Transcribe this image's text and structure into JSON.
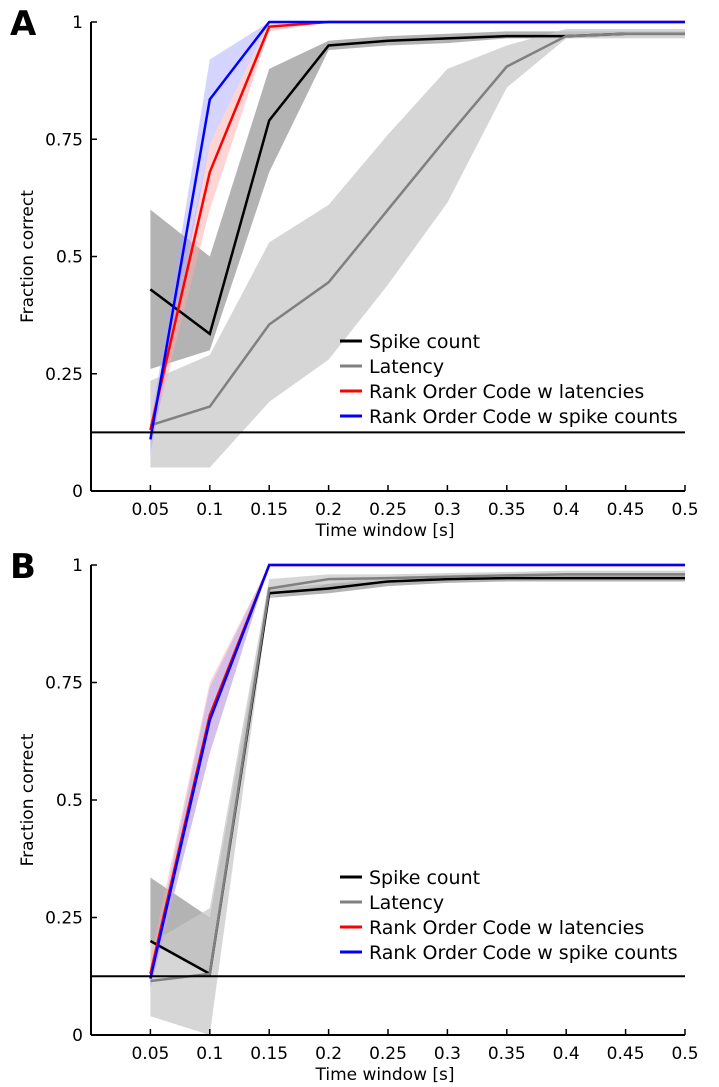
{
  "chart_data": [
    {
      "panel_label": "A",
      "type": "line",
      "xlabel": "Time window [s]",
      "ylabel": "Fraction correct",
      "x": [
        0.05,
        0.1,
        0.15,
        0.2,
        0.25,
        0.3,
        0.35,
        0.4,
        0.45,
        0.5
      ],
      "x_tick_labels": [
        "0.05",
        "0.1",
        "0.15",
        "0.2",
        "0.25",
        "0.3",
        "0.35",
        "0.4",
        "0.45",
        "0.5"
      ],
      "xlim": [
        0,
        0.5
      ],
      "ylim": [
        0,
        1
      ],
      "y_ticks": [
        0,
        0.25,
        0.5,
        0.75,
        1
      ],
      "y_tick_labels": [
        "0",
        "0.25",
        "0.5",
        "0.75",
        "1"
      ],
      "grid": false,
      "legend_position": "lower-right",
      "chance_level": 0.125,
      "series": [
        {
          "name": "Spike count",
          "color": "#000000",
          "band_color": "#808080",
          "band_opacity": 0.6,
          "values": [
            0.43,
            0.335,
            0.79,
            0.95,
            0.96,
            0.965,
            0.97,
            0.97,
            0.975,
            0.975
          ],
          "lower": [
            0.26,
            0.3,
            0.68,
            0.94,
            0.95,
            0.955,
            0.965,
            0.965,
            0.97,
            0.97
          ],
          "upper": [
            0.6,
            0.5,
            0.9,
            0.96,
            0.97,
            0.975,
            0.98,
            0.98,
            0.98,
            0.98
          ]
        },
        {
          "name": "Latency",
          "color": "#808080",
          "band_color": "#c8c8c8",
          "band_opacity": 0.75,
          "values": [
            0.14,
            0.18,
            0.355,
            0.445,
            0.6,
            0.755,
            0.905,
            0.97,
            0.975,
            0.975
          ],
          "lower": [
            0.05,
            0.05,
            0.19,
            0.28,
            0.44,
            0.615,
            0.86,
            0.965,
            0.965,
            0.965
          ],
          "upper": [
            0.235,
            0.29,
            0.53,
            0.61,
            0.76,
            0.9,
            0.95,
            0.985,
            0.985,
            0.985
          ]
        },
        {
          "name": "Rank Order Code w latencies",
          "color": "#ff0000",
          "band_color": "#ffaaaa",
          "band_opacity": 0.5,
          "values": [
            0.13,
            0.68,
            0.99,
            1,
            1,
            1,
            1,
            1,
            1,
            1
          ],
          "lower": [
            0.1,
            0.6,
            0.98,
            1,
            1,
            1,
            1,
            1,
            1,
            1
          ],
          "upper": [
            0.15,
            0.74,
            1,
            1,
            1,
            1,
            1,
            1,
            1,
            1
          ]
        },
        {
          "name": "Rank Order Code w spike counts",
          "color": "#0000ff",
          "band_color": "#aaaaff",
          "band_opacity": 0.5,
          "values": [
            0.11,
            0.835,
            1,
            1,
            1,
            1,
            1,
            1,
            1,
            1
          ],
          "lower": [
            0.08,
            0.74,
            1,
            1,
            1,
            1,
            1,
            1,
            1,
            1
          ],
          "upper": [
            0.14,
            0.92,
            1,
            1,
            1,
            1,
            1,
            1,
            1,
            1
          ]
        }
      ]
    },
    {
      "panel_label": "B",
      "type": "line",
      "xlabel": "Time window [s]",
      "ylabel": "Fraction correct",
      "x": [
        0.05,
        0.1,
        0.15,
        0.2,
        0.25,
        0.3,
        0.35,
        0.4,
        0.45,
        0.5
      ],
      "x_tick_labels": [
        "0.05",
        "0.1",
        "0.15",
        "0.2",
        "0.25",
        "0.3",
        "0.35",
        "0.4",
        "0.45",
        "0.5"
      ],
      "xlim": [
        0,
        0.5
      ],
      "ylim": [
        0,
        1
      ],
      "y_ticks": [
        0,
        0.25,
        0.5,
        0.75,
        1
      ],
      "y_tick_labels": [
        "0",
        "0.25",
        "0.5",
        "0.75",
        "1"
      ],
      "grid": false,
      "legend_position": "lower-right",
      "chance_level": 0.125,
      "series": [
        {
          "name": "Spike count",
          "color": "#000000",
          "band_color": "#808080",
          "band_opacity": 0.6,
          "values": [
            0.2,
            0.13,
            0.94,
            0.95,
            0.965,
            0.97,
            0.972,
            0.972,
            0.972,
            0.972
          ],
          "lower": [
            0.2,
            0.13,
            0.93,
            0.94,
            0.955,
            0.962,
            0.965,
            0.965,
            0.965,
            0.965
          ],
          "upper": [
            0.335,
            0.25,
            0.95,
            0.96,
            0.975,
            0.978,
            0.98,
            0.98,
            0.98,
            0.98
          ]
        },
        {
          "name": "Latency",
          "color": "#808080",
          "band_color": "#c8c8c8",
          "band_opacity": 0.75,
          "values": [
            0.115,
            0.13,
            0.95,
            0.97,
            0.972,
            0.975,
            0.978,
            0.98,
            0.98,
            0.98
          ],
          "lower": [
            0.04,
            0.0,
            0.93,
            0.96,
            0.965,
            0.968,
            0.972,
            0.975,
            0.975,
            0.975
          ],
          "upper": [
            0.195,
            0.27,
            0.97,
            0.98,
            0.98,
            0.983,
            0.985,
            0.988,
            0.988,
            0.988
          ]
        },
        {
          "name": "Rank Order Code w latencies",
          "color": "#ff0000",
          "band_color": "#ffaaaa",
          "band_opacity": 0.5,
          "values": [
            0.13,
            0.68,
            1,
            1,
            1,
            1,
            1,
            1,
            1,
            1
          ],
          "lower": [
            0.1,
            0.6,
            1,
            1,
            1,
            1,
            1,
            1,
            1,
            1
          ],
          "upper": [
            0.16,
            0.75,
            1,
            1,
            1,
            1,
            1,
            1,
            1,
            1
          ]
        },
        {
          "name": "Rank Order Code w spike counts",
          "color": "#0000ff",
          "band_color": "#aaaaff",
          "band_opacity": 0.5,
          "values": [
            0.12,
            0.67,
            1,
            1,
            1,
            1,
            1,
            1,
            1,
            1
          ],
          "lower": [
            0.1,
            0.6,
            1,
            1,
            1,
            1,
            1,
            1,
            1,
            1
          ],
          "upper": [
            0.14,
            0.74,
            1,
            1,
            1,
            1,
            1,
            1,
            1,
            1
          ]
        }
      ]
    }
  ]
}
